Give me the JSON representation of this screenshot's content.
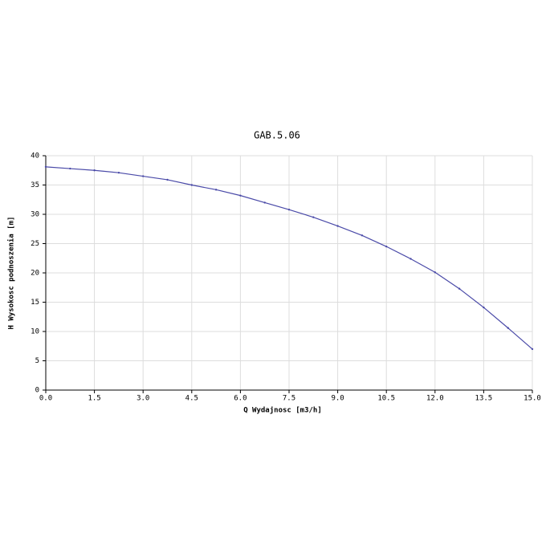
{
  "chart_data": {
    "type": "line",
    "title": "GAB.5.06",
    "xlabel": "Q Wydajnosc [m3/h]",
    "ylabel": "H Wysokosc podnoszenia [m]",
    "x": [
      0,
      0.75,
      1.5,
      2.25,
      3.0,
      3.75,
      4.5,
      5.25,
      6.0,
      6.75,
      7.5,
      8.25,
      9.0,
      9.75,
      10.5,
      11.25,
      12.0,
      12.75,
      13.5,
      14.25,
      15.0
    ],
    "series": [
      {
        "name": "H",
        "color": "#4a4aa8",
        "values": [
          38.1,
          37.8,
          37.5,
          37.1,
          36.5,
          35.9,
          35.0,
          34.2,
          33.2,
          32.0,
          30.8,
          29.5,
          28.0,
          26.4,
          24.5,
          22.4,
          20.1,
          17.3,
          14.1,
          10.6,
          7.0
        ]
      }
    ],
    "xlim": [
      0,
      15
    ],
    "ylim": [
      0,
      40
    ],
    "xticks": [
      {
        "value": 0,
        "label": "0.0"
      },
      {
        "value": 1.5,
        "label": "1.5"
      },
      {
        "value": 3,
        "label": "3.0"
      },
      {
        "value": 4.5,
        "label": "4.5"
      },
      {
        "value": 6,
        "label": "6.0"
      },
      {
        "value": 7.5,
        "label": "7.5"
      },
      {
        "value": 9,
        "label": "9.0"
      },
      {
        "value": 10.5,
        "label": "10.5"
      },
      {
        "value": 12,
        "label": "12.0"
      },
      {
        "value": 13.5,
        "label": "13.5"
      },
      {
        "value": 15,
        "label": "15.0"
      }
    ],
    "yticks": [
      0,
      5,
      10,
      15,
      20,
      25,
      30,
      35,
      40
    ],
    "grid": true
  }
}
